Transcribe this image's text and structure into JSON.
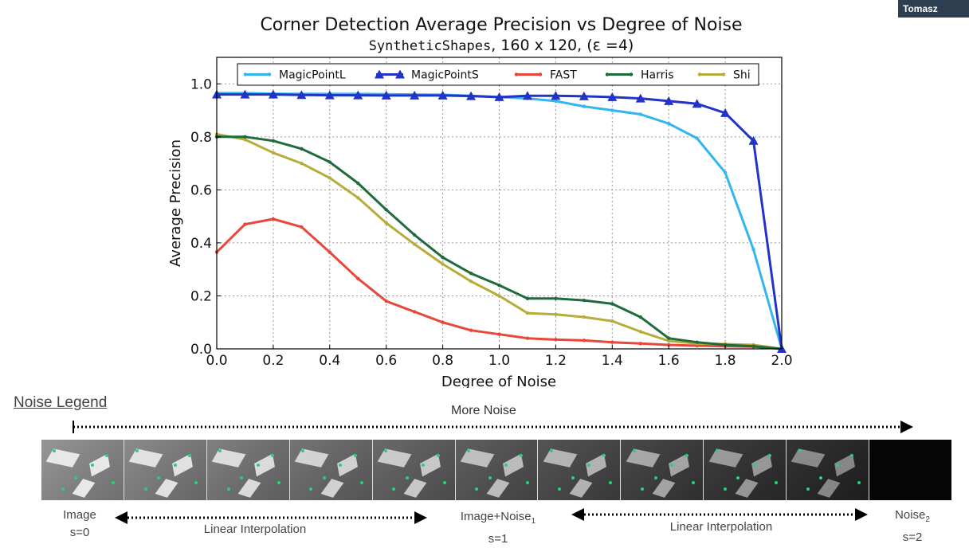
{
  "header": {
    "presenter_badge": "Tomasz"
  },
  "chart_data": {
    "type": "line",
    "title": "Corner Detection Average Precision vs Degree of Noise",
    "subtitle_mono": "SyntheticShapes",
    "subtitle_rest": ", 160 x 120, (ε =4)",
    "xlabel": "Degree of Noise",
    "ylabel": "Average Precision",
    "xlim": [
      0.0,
      2.0
    ],
    "ylim": [
      0.0,
      1.1
    ],
    "xticks": [
      "0.0",
      "0.2",
      "0.4",
      "0.6",
      "0.8",
      "1.0",
      "1.2",
      "1.4",
      "1.6",
      "1.8",
      "2.0"
    ],
    "yticks": [
      "0.0",
      "0.2",
      "0.4",
      "0.6",
      "0.8",
      "1.0"
    ],
    "grid": true,
    "legend_position": "top",
    "x": [
      0.0,
      0.1,
      0.2,
      0.3,
      0.4,
      0.5,
      0.6,
      0.7,
      0.8,
      0.9,
      1.0,
      1.1,
      1.2,
      1.3,
      1.4,
      1.5,
      1.6,
      1.7,
      1.8,
      1.9,
      2.0
    ],
    "series": [
      {
        "name": "MagicPointL",
        "color": "#33b5f0",
        "marker": "dot",
        "values": [
          0.965,
          0.965,
          0.963,
          0.962,
          0.962,
          0.962,
          0.961,
          0.96,
          0.959,
          0.955,
          0.95,
          0.945,
          0.935,
          0.915,
          0.9,
          0.885,
          0.85,
          0.795,
          0.665,
          0.375,
          0.0
        ]
      },
      {
        "name": "MagicPointS",
        "color": "#2233c8",
        "marker": "triangle",
        "values": [
          0.96,
          0.96,
          0.96,
          0.958,
          0.957,
          0.957,
          0.956,
          0.956,
          0.956,
          0.954,
          0.95,
          0.955,
          0.955,
          0.953,
          0.95,
          0.945,
          0.935,
          0.925,
          0.89,
          0.785,
          0.0
        ]
      },
      {
        "name": "FAST",
        "color": "#e8473a",
        "marker": "dot",
        "values": [
          0.365,
          0.47,
          0.49,
          0.46,
          0.365,
          0.265,
          0.18,
          0.14,
          0.1,
          0.07,
          0.055,
          0.04,
          0.035,
          0.032,
          0.025,
          0.02,
          0.015,
          0.012,
          0.01,
          0.008,
          0.0
        ]
      },
      {
        "name": "Harris",
        "color": "#1e6b3c",
        "marker": "dot",
        "values": [
          0.8,
          0.8,
          0.785,
          0.755,
          0.705,
          0.625,
          0.525,
          0.43,
          0.345,
          0.285,
          0.24,
          0.19,
          0.19,
          0.183,
          0.17,
          0.12,
          0.04,
          0.025,
          0.015,
          0.01,
          0.0
        ]
      },
      {
        "name": "Shi",
        "color": "#b5ad3a",
        "marker": "dot",
        "values": [
          0.81,
          0.79,
          0.74,
          0.7,
          0.645,
          0.57,
          0.475,
          0.395,
          0.32,
          0.255,
          0.2,
          0.135,
          0.13,
          0.12,
          0.105,
          0.065,
          0.03,
          0.02,
          0.018,
          0.015,
          0.0
        ]
      }
    ]
  },
  "noise_legend": {
    "title": "Noise Legend",
    "more_noise": "More Noise",
    "captions": {
      "image": "Image",
      "s0": "s=0",
      "linear1": "Linear Interpolation",
      "image_noise": "Image+Noise",
      "image_noise_sub": "1",
      "s1": "s=1",
      "linear2": "Linear Interpolation",
      "noise": "Noise",
      "noise_sub": "2",
      "s2": "s=2"
    },
    "frame_count": 11
  }
}
